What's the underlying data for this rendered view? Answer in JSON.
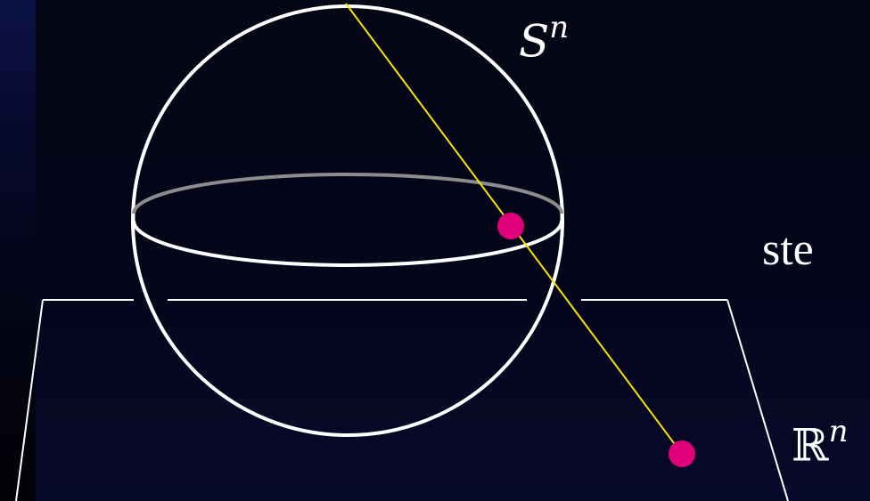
{
  "labels": {
    "sphere_base": "S",
    "sphere_exp": "n",
    "plane_base": "ℝ",
    "plane_exp": "n",
    "side_text": "ste"
  },
  "colors": {
    "background": "#030416",
    "sphere_stroke": "#ffffff",
    "equator_stroke": "#8c8c8c",
    "projection_line": "#f2e600",
    "points": "#e0007a"
  }
}
